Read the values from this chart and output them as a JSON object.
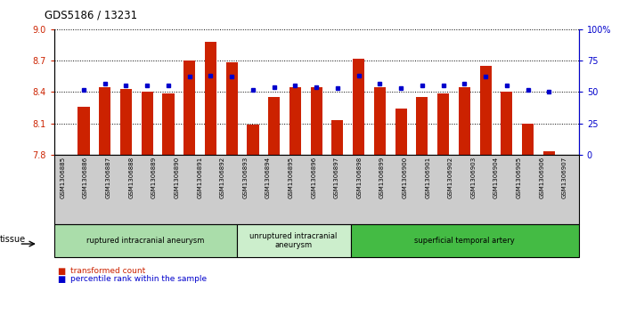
{
  "title": "GDS5186 / 13231",
  "samples": [
    "GSM1306885",
    "GSM1306886",
    "GSM1306887",
    "GSM1306888",
    "GSM1306889",
    "GSM1306890",
    "GSM1306891",
    "GSM1306892",
    "GSM1306893",
    "GSM1306894",
    "GSM1306895",
    "GSM1306896",
    "GSM1306897",
    "GSM1306898",
    "GSM1306899",
    "GSM1306900",
    "GSM1306901",
    "GSM1306902",
    "GSM1306903",
    "GSM1306904",
    "GSM1306905",
    "GSM1306906",
    "GSM1306907"
  ],
  "bar_values": [
    8.26,
    8.45,
    8.43,
    8.4,
    8.385,
    8.7,
    8.875,
    8.68,
    8.09,
    8.355,
    8.45,
    8.45,
    8.13,
    8.72,
    8.45,
    8.24,
    8.35,
    8.385,
    8.45,
    8.65,
    8.4,
    8.1,
    7.84
  ],
  "percentile_values": [
    52,
    57,
    55,
    55,
    55,
    62,
    63,
    62,
    52,
    54,
    55,
    54,
    53,
    63,
    57,
    53,
    55,
    55,
    57,
    62,
    55,
    52,
    50
  ],
  "groups": [
    {
      "label": "ruptured intracranial aneurysm",
      "start": 0,
      "end": 8,
      "color": "#aaddaa"
    },
    {
      "label": "unruptured intracranial\naneurysm",
      "start": 8,
      "end": 13,
      "color": "#cceecc"
    },
    {
      "label": "superficial temporal artery",
      "start": 13,
      "end": 23,
      "color": "#44bb44"
    }
  ],
  "ylim_left": [
    7.8,
    9.0
  ],
  "ylim_right": [
    0,
    100
  ],
  "yticks_left": [
    7.8,
    8.1,
    8.4,
    8.7,
    9.0
  ],
  "yticks_right": [
    0,
    25,
    50,
    75,
    100
  ],
  "bar_color": "#cc2200",
  "marker_color": "#0000cc",
  "plot_bg": "#ffffff",
  "xtick_bg": "#cccccc",
  "legend_bar": "transformed count",
  "legend_marker": "percentile rank within the sample",
  "tissue_label": "tissue"
}
